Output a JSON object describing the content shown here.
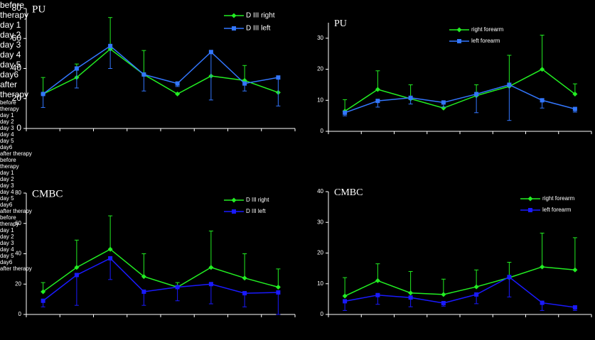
{
  "chart_data": [
    {
      "type": "line",
      "title": "PU",
      "categories": [
        "before therapy",
        "day 1",
        "day 2",
        "day 3",
        "day 4",
        "day 5",
        "day6",
        "after therapy"
      ],
      "series": [
        {
          "name": "D III right",
          "color": "#22ee22",
          "marker": "diamond",
          "error_direction": "up",
          "values": [
            23,
            34,
            53,
            36,
            23,
            35,
            32,
            24
          ],
          "errors": [
            11,
            9,
            21,
            16,
            null,
            null,
            10,
            null
          ]
        },
        {
          "name": "D III left",
          "color": "#3377ff",
          "marker": "square",
          "error_direction": "down",
          "values": [
            23,
            40,
            55,
            36,
            30,
            51,
            30,
            34
          ],
          "errors": [
            9,
            13,
            15,
            11,
            2,
            32,
            5,
            19
          ]
        }
      ],
      "ylim": [
        0,
        80
      ],
      "yticks": [
        0,
        20,
        40,
        60,
        80
      ],
      "legend": "upper right"
    },
    {
      "type": "line",
      "title": "PU",
      "categories": [
        "before therapy",
        "day 1",
        "day 2",
        "day 3",
        "day 4",
        "day 5",
        "day6",
        "after therapy"
      ],
      "series": [
        {
          "name": "right forearm",
          "color": "#22ee22",
          "marker": "diamond",
          "error_direction": "up",
          "values": [
            6.5,
            13.5,
            10.5,
            7.5,
            11.5,
            14.5,
            20,
            12
          ],
          "errors": [
            3.7,
            6,
            4.5,
            null,
            3.5,
            10,
            11,
            3.3
          ]
        },
        {
          "name": "left forearm",
          "color": "#3377ff",
          "marker": "square",
          "error_direction": "down",
          "values": [
            6,
            9.8,
            10.8,
            9.3,
            12,
            15,
            10,
            7.2
          ],
          "errors": [
            1,
            2,
            2,
            1.5,
            6,
            11.5,
            2.5,
            1
          ]
        }
      ],
      "ylim": [
        0,
        35
      ],
      "yticks": [
        0,
        10,
        20,
        30
      ],
      "legend": "upper center"
    },
    {
      "type": "line",
      "title": "CMBC",
      "categories": [
        "before therapy",
        "day 1",
        "day 2",
        "day 3",
        "day 4",
        "day 5",
        "day6",
        "after therapy"
      ],
      "series": [
        {
          "name": "D III right",
          "color": "#22ee22",
          "marker": "diamond",
          "error_direction": "up",
          "values": [
            15,
            31,
            43,
            25,
            18,
            31,
            24,
            18
          ],
          "errors": [
            6,
            18,
            22,
            15,
            3,
            24,
            16,
            12
          ]
        },
        {
          "name": "D III left",
          "color": "#1a1aff",
          "marker": "square",
          "error_direction": "down",
          "values": [
            9,
            26,
            37,
            15,
            18,
            20,
            14,
            14.5
          ],
          "errors": [
            4,
            20,
            14,
            9,
            9,
            13,
            9,
            14.5
          ]
        }
      ],
      "ylim": [
        0,
        80
      ],
      "yticks": [
        0,
        20,
        40,
        60,
        80
      ],
      "legend": "upper right"
    },
    {
      "type": "line",
      "title": "CMBC",
      "categories": [
        "before therapy",
        "day 1",
        "day 2",
        "day 3",
        "day 4",
        "day 5",
        "day6",
        "after therapy"
      ],
      "series": [
        {
          "name": "right forearm",
          "color": "#22ee22",
          "marker": "diamond",
          "error_direction": "up",
          "values": [
            6,
            11,
            7,
            6.5,
            9,
            12,
            15.5,
            14.5
          ],
          "errors": [
            6,
            5.5,
            7,
            5,
            5.5,
            5,
            11,
            10.5
          ]
        },
        {
          "name": "left forearm",
          "color": "#1a1aff",
          "marker": "square",
          "error_direction": "down",
          "values": [
            4.3,
            6.3,
            5.5,
            3.7,
            6.5,
            12.2,
            3.8,
            2.3
          ],
          "errors": [
            3,
            3,
            3,
            1,
            3,
            6.5,
            2.5,
            1
          ]
        }
      ],
      "ylim": [
        0,
        40
      ],
      "yticks": [
        0,
        10,
        20,
        30,
        40
      ],
      "legend": "upper right"
    }
  ]
}
